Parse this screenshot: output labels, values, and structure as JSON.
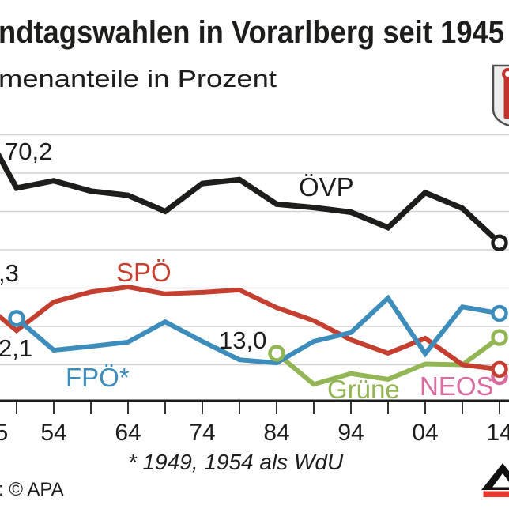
{
  "header": {
    "title": "ndtagswahlen in Vorarlberg seit 1945",
    "subtitle": "menanteile in Prozent"
  },
  "footer": {
    "footnote": "* 1949, 1954 als WdU",
    "source": ": © APA"
  },
  "colors": {
    "oevp": "#1d1d1b",
    "spoe": "#c53f30",
    "fpoe": "#3c8dbb",
    "gruene": "#92b654",
    "neos": "#d96ba1",
    "grid": "#d2d2d2",
    "axis": "#1d1d1b",
    "text": "#1d1d1b",
    "crest_fill": "#ececec",
    "crest_stroke": "#4d4d4d",
    "crest_red": "#c2332b",
    "logo_black": "#111111",
    "logo_red": "#e8352e",
    "white": "#ffffff"
  },
  "chart_data": {
    "type": "line",
    "x_years": [
      1945,
      1949,
      1954,
      1959,
      1964,
      1969,
      1974,
      1979,
      1984,
      1989,
      1994,
      1999,
      2004,
      2009,
      2014
    ],
    "x_tick_labels": [
      "5",
      "54",
      "64",
      "74",
      "84",
      "94",
      "04",
      "14"
    ],
    "x_tick_label_years": [
      1945,
      1954,
      1964,
      1974,
      1984,
      1994,
      2004,
      2014
    ],
    "minor_tick_step_years": 5,
    "xlim_years": [
      1945,
      2014
    ],
    "ylim": [
      0,
      74
    ],
    "grid_values": [
      10,
      20,
      30,
      40,
      50,
      60,
      70
    ],
    "series": [
      {
        "name": "NEOS",
        "color_key": "neos",
        "width": 6,
        "values": [
          null,
          null,
          null,
          null,
          null,
          null,
          null,
          null,
          null,
          null,
          null,
          null,
          null,
          null,
          6.9
        ],
        "markers": [
          "last"
        ]
      },
      {
        "name": "Grüne",
        "color_key": "gruene",
        "width": 6,
        "values": [
          null,
          null,
          null,
          null,
          null,
          null,
          null,
          null,
          13.0,
          4.9,
          7.7,
          6.2,
          10.2,
          10.0,
          17.1
        ],
        "markers": [
          "first",
          "last"
        ]
      },
      {
        "name": "SPÖ",
        "color_key": "spoe",
        "width": 6,
        "values": [
          25.3,
          18.9,
          26.4,
          29.0,
          30.3,
          28.5,
          28.9,
          29.5,
          24.9,
          21.5,
          16.5,
          13.0,
          16.9,
          10.0,
          8.8
        ],
        "markers": [
          "last"
        ]
      },
      {
        "name": "FPÖ",
        "color_key": "fpoe",
        "width": 6,
        "values": [
          null,
          22.1,
          13.8,
          14.8,
          15.9,
          21.2,
          16.1,
          11.3,
          10.5,
          16.1,
          18.4,
          27.4,
          12.9,
          25.1,
          23.4
        ],
        "markers": [
          "first",
          "last"
        ]
      },
      {
        "name": "ÖVP",
        "color_key": "oevp",
        "width": 7,
        "values": [
          70.2,
          56.1,
          58.0,
          55.3,
          54.2,
          50.0,
          57.3,
          58.3,
          51.9,
          51.0,
          49.8,
          45.8,
          54.9,
          50.8,
          41.8
        ],
        "markers": [
          "last"
        ]
      }
    ],
    "annotations": [
      {
        "id": "val_oevp_1945",
        "text": "70,2"
      },
      {
        "id": "val_spoe_1945",
        "text": ",3"
      },
      {
        "id": "val_fpoe_1949",
        "text": "2,1"
      },
      {
        "id": "val_gruene_1984",
        "text": "13,0"
      },
      {
        "id": "label_oevp",
        "text": "ÖVP"
      },
      {
        "id": "label_spoe",
        "text": "SPÖ"
      },
      {
        "id": "label_fpoe",
        "text": "FPÖ*"
      },
      {
        "id": "label_gruene",
        "text": "Grüne"
      },
      {
        "id": "label_neos",
        "text": "NEOS"
      }
    ]
  }
}
